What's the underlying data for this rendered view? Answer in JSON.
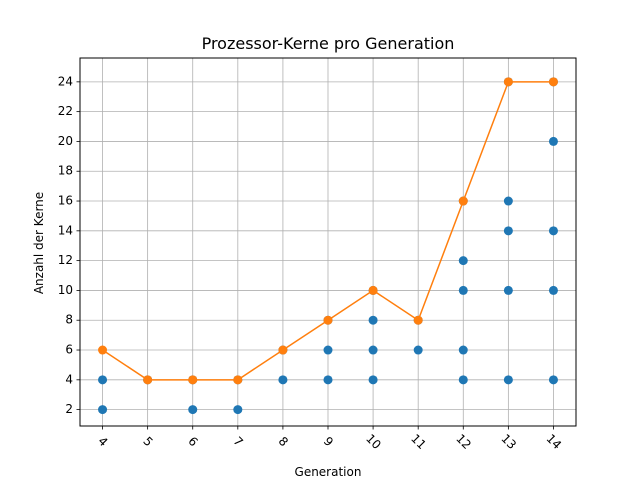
{
  "chart_data": {
    "type": "scatter",
    "title": "Prozessor-Kerne pro Generation",
    "xlabel": "Generation",
    "ylabel": "Anzahl der Kerne",
    "xlim": [
      3.5,
      14.5
    ],
    "ylim": [
      0.9,
      25.6
    ],
    "x_ticks": [
      4,
      5,
      6,
      7,
      8,
      9,
      10,
      11,
      12,
      13,
      14
    ],
    "y_ticks": [
      2,
      4,
      6,
      8,
      10,
      12,
      14,
      16,
      18,
      20,
      22,
      24
    ],
    "x_tick_rotation": 45,
    "grid": true,
    "series": [
      {
        "type": "scatter",
        "color": "#1f77b4",
        "points": [
          [
            4,
            2
          ],
          [
            4,
            4
          ],
          [
            5,
            4
          ],
          [
            6,
            2
          ],
          [
            6,
            4
          ],
          [
            7,
            2
          ],
          [
            7,
            4
          ],
          [
            8,
            4
          ],
          [
            8,
            6
          ],
          [
            9,
            4
          ],
          [
            9,
            6
          ],
          [
            9,
            8
          ],
          [
            10,
            4
          ],
          [
            10,
            6
          ],
          [
            10,
            8
          ],
          [
            10,
            10
          ],
          [
            11,
            6
          ],
          [
            11,
            8
          ],
          [
            12,
            4
          ],
          [
            12,
            6
          ],
          [
            12,
            10
          ],
          [
            12,
            12
          ],
          [
            12,
            16
          ],
          [
            13,
            4
          ],
          [
            13,
            10
          ],
          [
            13,
            14
          ],
          [
            13,
            16
          ],
          [
            13,
            24
          ],
          [
            14,
            4
          ],
          [
            14,
            10
          ],
          [
            14,
            14
          ],
          [
            14,
            20
          ],
          [
            14,
            24
          ]
        ]
      },
      {
        "type": "line",
        "color": "#ff7f0e",
        "points": [
          [
            4,
            6
          ],
          [
            5,
            4
          ],
          [
            6,
            4
          ],
          [
            7,
            4
          ],
          [
            8,
            6
          ],
          [
            9,
            8
          ],
          [
            10,
            10
          ],
          [
            11,
            8
          ],
          [
            12,
            16
          ],
          [
            13,
            24
          ],
          [
            14,
            24
          ]
        ]
      }
    ]
  }
}
